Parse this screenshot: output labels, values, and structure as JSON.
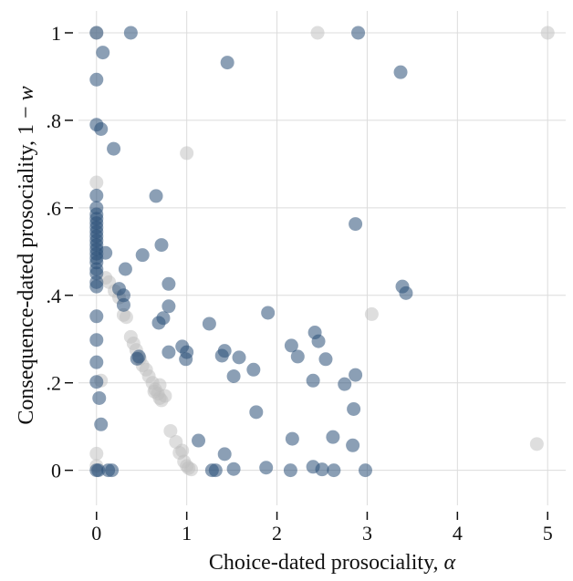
{
  "chart_data": {
    "type": "scatter",
    "xlabel_text": "Choice-dated prosociality, ",
    "xlabel_symbol": "α",
    "ylabel_text": "Consequence-dated prosociality, 1 − ",
    "ylabel_symbol": "w",
    "xlim": [
      -0.2,
      5.2
    ],
    "ylim": [
      -0.08,
      1.05
    ],
    "x_ticks": [
      {
        "value": 0,
        "label": "0"
      },
      {
        "value": 1,
        "label": "1"
      },
      {
        "value": 2,
        "label": "2"
      },
      {
        "value": 3,
        "label": "3"
      },
      {
        "value": 4,
        "label": "4"
      },
      {
        "value": 5,
        "label": "5"
      }
    ],
    "y_ticks": [
      {
        "value": 0,
        "label": "0"
      },
      {
        "value": 0.2,
        "label": ".2"
      },
      {
        "value": 0.4,
        "label": ".4"
      },
      {
        "value": 0.6,
        "label": ".6"
      },
      {
        "value": 0.8,
        "label": ".8"
      },
      {
        "value": 1,
        "label": "1"
      }
    ],
    "grid": true,
    "series": [
      {
        "color": "#2b5079",
        "opacity": 0.55,
        "points": [
          [
            0,
            1
          ],
          [
            0.38,
            1
          ],
          [
            2.9,
            1
          ],
          [
            0.07,
            0.955
          ],
          [
            1.45,
            0.932
          ],
          [
            3.37,
            0.91
          ],
          [
            0,
            0.893
          ],
          [
            0,
            0.79
          ],
          [
            0.05,
            0.78
          ],
          [
            0.19,
            0.735
          ],
          [
            0.66,
            0.627
          ],
          [
            0,
            0.628
          ],
          [
            0,
            0.6
          ],
          [
            0,
            0.585
          ],
          [
            0,
            0.575
          ],
          [
            0,
            0.565
          ],
          [
            0,
            0.555
          ],
          [
            0,
            0.545
          ],
          [
            0,
            0.535
          ],
          [
            0,
            0.525
          ],
          [
            0,
            0.515
          ],
          [
            0,
            0.505
          ],
          [
            0,
            0.495
          ],
          [
            0,
            0.485
          ],
          [
            0,
            0.475
          ],
          [
            0,
            0.46
          ],
          [
            0,
            0.45
          ],
          [
            0,
            0.43
          ],
          [
            0,
            0.42
          ],
          [
            2.87,
            0.563
          ],
          [
            0.72,
            0.515
          ],
          [
            0.1,
            0.497
          ],
          [
            0.51,
            0.492
          ],
          [
            0.32,
            0.46
          ],
          [
            0.8,
            0.426
          ],
          [
            3.39,
            0.42
          ],
          [
            3.43,
            0.405
          ],
          [
            0.25,
            0.415
          ],
          [
            0.3,
            0.4
          ],
          [
            0.3,
            0.378
          ],
          [
            0.8,
            0.375
          ],
          [
            0.74,
            0.348
          ],
          [
            0.69,
            0.337
          ],
          [
            1.25,
            0.335
          ],
          [
            1.9,
            0.36
          ],
          [
            0,
            0.352
          ],
          [
            0,
            0.298
          ],
          [
            0.95,
            0.283
          ],
          [
            1.0,
            0.27
          ],
          [
            0.8,
            0.27
          ],
          [
            1.42,
            0.273
          ],
          [
            2.42,
            0.315
          ],
          [
            2.46,
            0.295
          ],
          [
            2.16,
            0.285
          ],
          [
            1.58,
            0.258
          ],
          [
            1.39,
            0.262
          ],
          [
            2.23,
            0.26
          ],
          [
            2.54,
            0.254
          ],
          [
            0.99,
            0.254
          ],
          [
            0.47,
            0.26
          ],
          [
            0.45,
            0.255
          ],
          [
            0,
            0.247
          ],
          [
            1.74,
            0.23
          ],
          [
            1.52,
            0.215
          ],
          [
            2.87,
            0.218
          ],
          [
            2.4,
            0.205
          ],
          [
            2.75,
            0.197
          ],
          [
            0,
            0.202
          ],
          [
            0.03,
            0.165
          ],
          [
            2.85,
            0.14
          ],
          [
            1.77,
            0.133
          ],
          [
            0.05,
            0.105
          ],
          [
            1.13,
            0.068
          ],
          [
            2.17,
            0.072
          ],
          [
            2.62,
            0.076
          ],
          [
            2.84,
            0.057
          ],
          [
            1.42,
            0.037
          ],
          [
            0,
            0
          ],
          [
            0.02,
            0
          ],
          [
            0.13,
            0
          ],
          [
            0.17,
            0
          ],
          [
            1.28,
            0
          ],
          [
            1.32,
            0
          ],
          [
            1.52,
            0.003
          ],
          [
            1.88,
            0.006
          ],
          [
            2.15,
            0
          ],
          [
            2.4,
            0.008
          ],
          [
            2.5,
            0.002
          ],
          [
            2.63,
            0
          ],
          [
            2.98,
            0
          ]
        ]
      },
      {
        "color": "#bdbdbd",
        "opacity": 0.5,
        "points": [
          [
            0,
            1
          ],
          [
            2.45,
            1
          ],
          [
            5.0,
            1
          ],
          [
            1.0,
            0.725
          ],
          [
            0,
            0.658
          ],
          [
            0.1,
            0.44
          ],
          [
            0.14,
            0.43
          ],
          [
            0.2,
            0.41
          ],
          [
            0.25,
            0.395
          ],
          [
            0.3,
            0.355
          ],
          [
            0.33,
            0.35
          ],
          [
            3.05,
            0.357
          ],
          [
            0.38,
            0.305
          ],
          [
            0.41,
            0.29
          ],
          [
            0.44,
            0.275
          ],
          [
            0.48,
            0.255
          ],
          [
            0.51,
            0.24
          ],
          [
            0.55,
            0.23
          ],
          [
            0.58,
            0.215
          ],
          [
            0.62,
            0.2
          ],
          [
            0.65,
            0.185
          ],
          [
            0.68,
            0.175
          ],
          [
            0.7,
            0.165
          ],
          [
            0.72,
            0.16
          ],
          [
            0.76,
            0.17
          ],
          [
            0.7,
            0.195
          ],
          [
            0.64,
            0.18
          ],
          [
            0.82,
            0.09
          ],
          [
            0.88,
            0.065
          ],
          [
            0.92,
            0.04
          ],
          [
            0.95,
            0.045
          ],
          [
            0.97,
            0.02
          ],
          [
            1.0,
            0.01
          ],
          [
            1.02,
            0.005
          ],
          [
            1.05,
            0.002
          ],
          [
            0.05,
            0.205
          ],
          [
            0,
            0.038
          ],
          [
            0,
            0.01
          ],
          [
            4.88,
            0.06
          ]
        ]
      }
    ]
  }
}
